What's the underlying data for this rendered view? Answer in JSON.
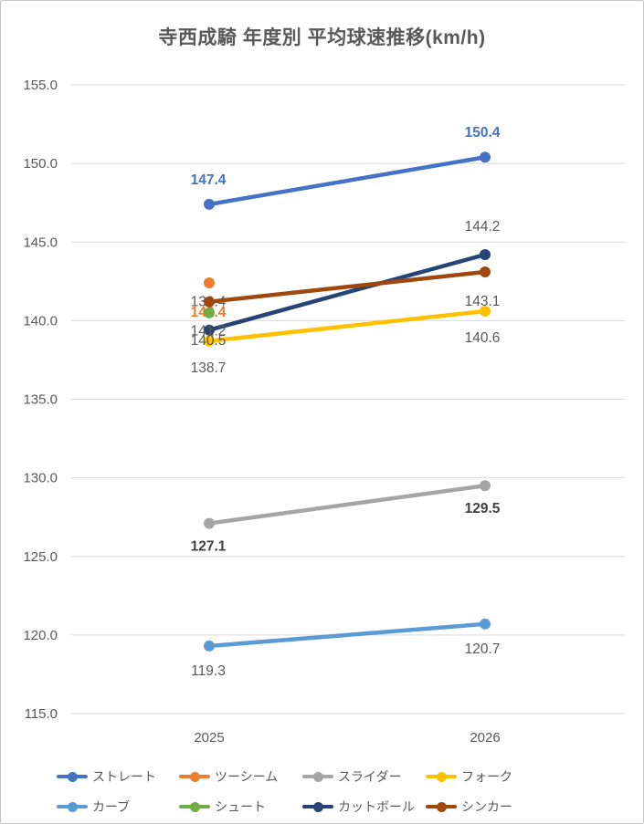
{
  "title": "寺西成騎 年度別 平均球速推移(km/h)",
  "chart_data": {
    "type": "line",
    "categories": [
      "2025",
      "2026"
    ],
    "y_ticks": [
      155.0,
      150.0,
      145.0,
      140.0,
      135.0,
      130.0,
      125.0,
      120.0,
      115.0
    ],
    "ylim": [
      115,
      155
    ],
    "grid": true,
    "legend_position": "bottom",
    "axis_color": "#595959",
    "gridline_color": "#d9d9d9",
    "series": [
      {
        "key": "straight",
        "name": "ストレート",
        "color": "#4472C4",
        "values": [
          147.4,
          150.4
        ],
        "label_side": "above",
        "label_dy": -27,
        "label_color": "#4472C4",
        "label_bold": true
      },
      {
        "key": "two-seam",
        "name": "ツーシーム",
        "color": "#ED7D31",
        "values": [
          142.4,
          null
        ],
        "label_side": "below",
        "label_dy": 32,
        "label_color": "#ED7D31",
        "label_bold": true
      },
      {
        "key": "slider",
        "name": "スライダー",
        "color": "#A5A5A5",
        "values": [
          127.1,
          129.5
        ],
        "label_side": "below",
        "label_dy": 25,
        "label_color": "#404040",
        "label_bold": true
      },
      {
        "key": "fork",
        "name": "フォーク",
        "color": "#FFC000",
        "values": [
          138.7,
          140.6
        ],
        "label_side": "below",
        "label_dy": 29,
        "label_color": "#595959",
        "label_bold": false
      },
      {
        "key": "curve",
        "name": "カーブ",
        "color": "#5B9BD5",
        "values": [
          119.3,
          120.7
        ],
        "label_side": "below",
        "label_dy": 27,
        "label_color": "#595959",
        "label_bold": false
      },
      {
        "key": "shoot",
        "name": "シュート",
        "color": "#70AD47",
        "values": [
          140.5,
          null
        ],
        "label_side": "below",
        "label_dy": 30,
        "label_color": "#595959",
        "label_bold": false
      },
      {
        "key": "cutball",
        "name": "カットボール",
        "color": "#264478",
        "values": [
          139.4,
          144.2
        ],
        "label_side": "above",
        "label_dy": -31,
        "label_color": "#595959",
        "label_bold": false
      },
      {
        "key": "sinker",
        "name": "シンカー",
        "color": "#9E480E",
        "values": [
          141.2,
          143.1
        ],
        "label_side": "below",
        "label_dy": 32,
        "label_color": "#595959",
        "label_bold": false
      }
    ]
  }
}
